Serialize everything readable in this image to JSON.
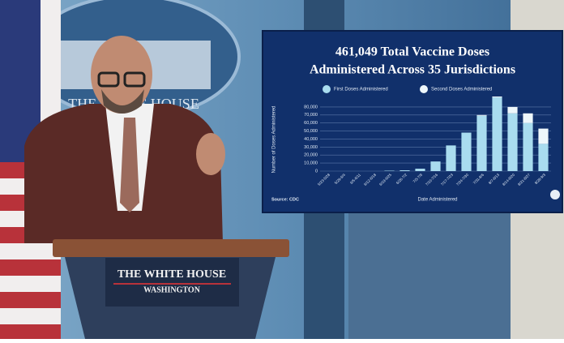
{
  "backdrop": {
    "seal_text": "THE WHITE HOUSE"
  },
  "podium": {
    "line1": "THE WHITE HOUSE",
    "line2": "WASHINGTON"
  },
  "chart_data": {
    "type": "bar",
    "title": "461,049 Total Vaccine Doses",
    "subtitle": "Administered Across 35 Jurisdictions",
    "y_label": "Number of Doses Administered",
    "x_label": "Date Administered",
    "source": "Source: CDC",
    "stacked": true,
    "categories": [
      "5/23-5/28",
      "5/29-6/4",
      "6/5-6/11",
      "6/12-6/18",
      "6/19-6/25",
      "6/26-7/2",
      "7/3-7/9",
      "7/10-7/16",
      "7/17-7/23",
      "7/24-7/30",
      "7/31-8/6",
      "8/7-8/13",
      "8/14-8/20",
      "8/21-8/27",
      "8/28-9/3"
    ],
    "series": [
      {
        "name": "First Doses Administered",
        "color": "#a9dcef",
        "values": [
          0,
          0,
          0,
          0,
          500,
          1000,
          3000,
          12000,
          32000,
          48000,
          69000,
          92000,
          72000,
          60000,
          34000
        ]
      },
      {
        "name": "Second Doses Administered",
        "color": "#eef7fb",
        "values": [
          0,
          0,
          0,
          0,
          0,
          0,
          0,
          0,
          0,
          0,
          1000,
          1000,
          8000,
          12000,
          19000
        ]
      }
    ],
    "ylim": [
      0,
      90000
    ],
    "yticks": [
      0,
      {
        "value": 10000,
        "label": "10,000"
      },
      {
        "value": 20000,
        "label": "20,000"
      },
      {
        "value": 30000,
        "label": "30,000"
      },
      {
        "value": 40000,
        "label": "40,000"
      },
      {
        "value": 50000,
        "label": "50,000"
      },
      {
        "value": 60000,
        "label": "60,000"
      },
      {
        "value": 70000,
        "label": "70,000"
      },
      {
        "value": 80000,
        "label": "80,000"
      }
    ],
    "grid": true
  }
}
